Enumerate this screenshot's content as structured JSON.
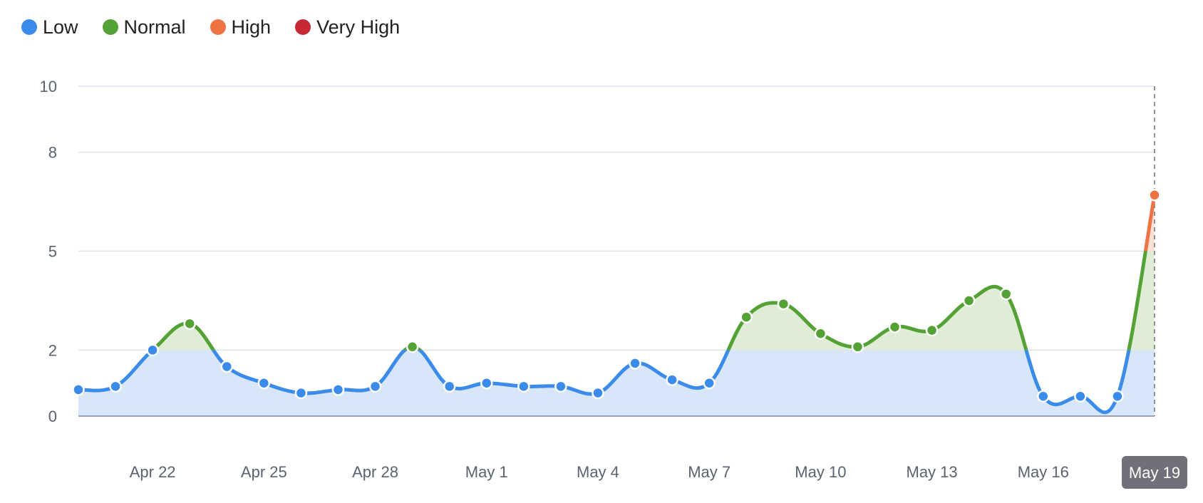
{
  "legend": {
    "items": [
      {
        "label": "Low",
        "color": "#3b8beb"
      },
      {
        "label": "Normal",
        "color": "#54a136"
      },
      {
        "label": "High",
        "color": "#ee7242"
      },
      {
        "label": "Very High",
        "color": "#c62834"
      }
    ]
  },
  "chart_data": {
    "type": "line",
    "title": "",
    "xlabel": "",
    "ylabel": "",
    "ylim": [
      0,
      10
    ],
    "y_ticks": [
      0,
      2,
      5,
      8,
      10
    ],
    "x_tick_labels": [
      "Apr 22",
      "Apr 25",
      "Apr 28",
      "May 1",
      "May 4",
      "May 7",
      "May 10",
      "May 13",
      "May 16"
    ],
    "highlighted_date": "May 19",
    "grid": true,
    "legend_position": "top-left",
    "bands": [
      {
        "name": "Low",
        "from": 0,
        "to": 2,
        "color": "#3b8beb",
        "fill": "#d8e6fa"
      },
      {
        "name": "Normal",
        "from": 2,
        "to": 5,
        "color": "#54a136",
        "fill": "#dfedd6"
      },
      {
        "name": "High",
        "from": 5,
        "to": 8,
        "color": "#ee7242",
        "fill": "#fbe0d4"
      },
      {
        "name": "Very High",
        "from": 8,
        "to": 10,
        "color": "#c62834",
        "fill": "#f3d3d6"
      }
    ],
    "x": [
      "Apr 20",
      "Apr 21",
      "Apr 22",
      "Apr 23",
      "Apr 24",
      "Apr 25",
      "Apr 26",
      "Apr 27",
      "Apr 28",
      "Apr 29",
      "Apr 30",
      "May 1",
      "May 2",
      "May 3",
      "May 4",
      "May 5",
      "May 6",
      "May 7",
      "May 8",
      "May 9",
      "May 10",
      "May 11",
      "May 12",
      "May 13",
      "May 14",
      "May 15",
      "May 16",
      "May 17",
      "May 18",
      "May 19"
    ],
    "values": [
      0.8,
      0.9,
      2.0,
      2.8,
      1.5,
      1.0,
      0.7,
      0.8,
      0.9,
      2.1,
      0.9,
      1.0,
      0.9,
      0.9,
      0.7,
      1.6,
      1.1,
      1.0,
      3.0,
      3.4,
      2.5,
      2.1,
      2.7,
      2.6,
      3.5,
      3.7,
      0.6,
      0.6,
      0.6,
      6.7
    ]
  }
}
